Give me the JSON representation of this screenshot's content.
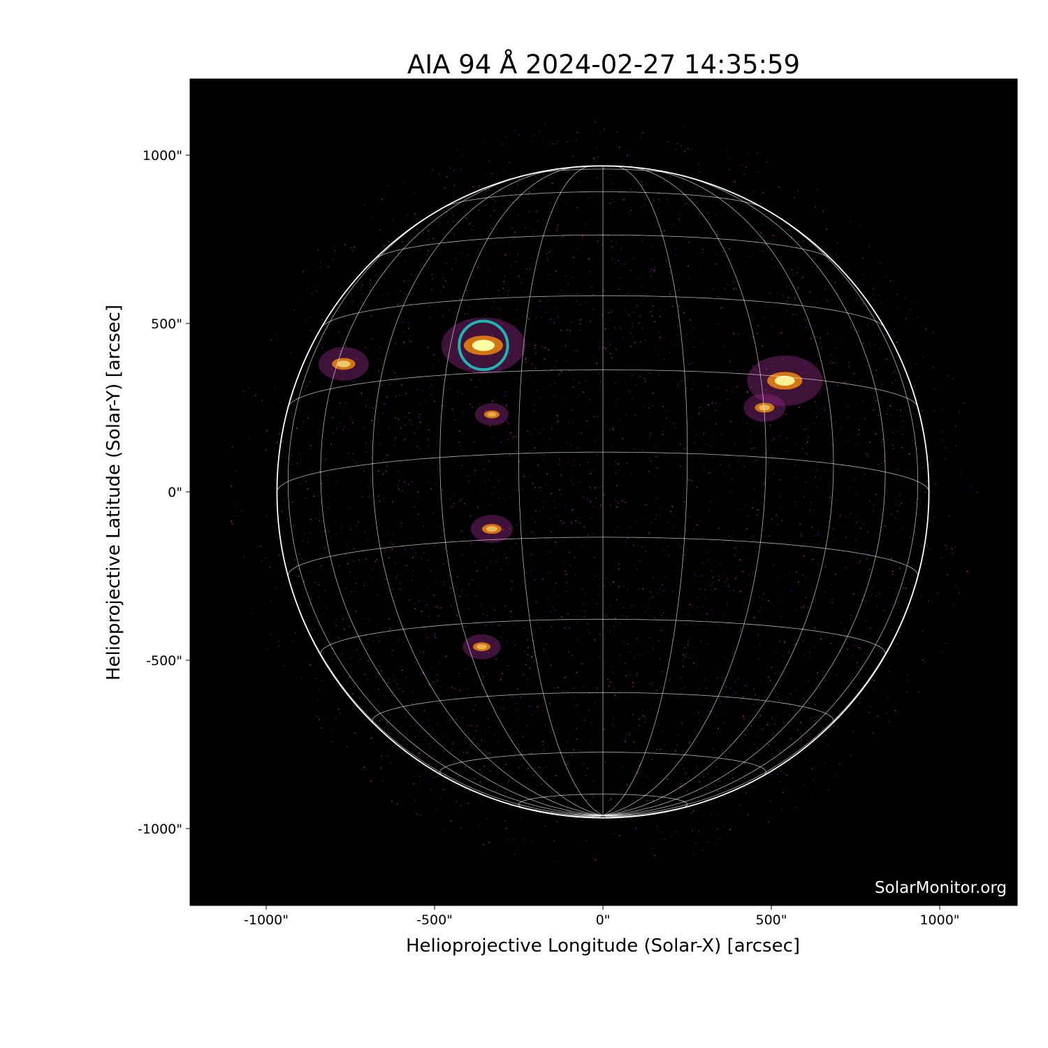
{
  "chart_data": {
    "type": "heatmap",
    "title": "AIA 94 Å 2024-02-27 14:35:59",
    "xlabel": "Helioprojective Longitude (Solar-X) [arcsec]",
    "ylabel": "Helioprojective Latitude (Solar-Y) [arcsec]",
    "xlim": [
      -1230,
      1230
    ],
    "ylim": [
      -1230,
      1230
    ],
    "x_ticks": [
      {
        "value": -1000,
        "label": "-1000\""
      },
      {
        "value": -500,
        "label": "-500\""
      },
      {
        "value": 0,
        "label": "0\""
      },
      {
        "value": 500,
        "label": "500\""
      },
      {
        "value": 1000,
        "label": "1000\""
      }
    ],
    "y_ticks": [
      {
        "value": 1000,
        "label": "1000\""
      },
      {
        "value": 500,
        "label": "500\""
      },
      {
        "value": 0,
        "label": "0\""
      },
      {
        "value": -500,
        "label": "-500\""
      },
      {
        "value": -1000,
        "label": "-1000\""
      }
    ],
    "colormap": "inferno-like",
    "background": "#000000",
    "solar_radius_arcsec": 968,
    "grid": {
      "visible": true,
      "spacing_deg": 15,
      "color": "#ffffff"
    },
    "highlight_circle": {
      "center": [
        -355,
        435
      ],
      "radius": 72,
      "color": "#1fb5b5"
    },
    "active_regions": [
      {
        "center": [
          -355,
          435
        ],
        "intensity": 1.0
      },
      {
        "center": [
          540,
          330
        ],
        "intensity": 0.9
      },
      {
        "center": [
          -770,
          380
        ],
        "intensity": 0.6
      },
      {
        "center": [
          -330,
          -110
        ],
        "intensity": 0.5
      },
      {
        "center": [
          -360,
          -460
        ],
        "intensity": 0.45
      },
      {
        "center": [
          -330,
          230
        ],
        "intensity": 0.4
      },
      {
        "center": [
          480,
          250
        ],
        "intensity": 0.5
      }
    ],
    "watermark": "SolarMonitor.org"
  }
}
